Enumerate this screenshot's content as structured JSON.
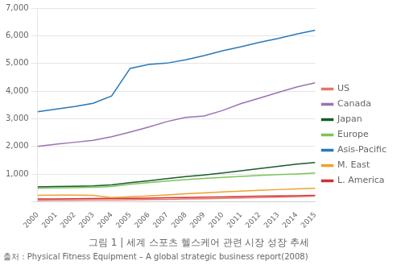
{
  "chart_data": {
    "type": "line",
    "title": "그림 1 | 세계 스포츠 헬스케어 관련 시장 성장 추세",
    "annotations": [
      "출처 : Physical Fitness Equipment – A global strategic business report(2008)"
    ],
    "x": [
      2000,
      2001,
      2002,
      2003,
      2004,
      2005,
      2006,
      2007,
      2008,
      2009,
      2010,
      2011,
      2012,
      2013,
      2014,
      2015
    ],
    "series": [
      {
        "name": "US",
        "color": "#e8756a",
        "values": [
          50,
          55,
          58,
          62,
          65,
          70,
          78,
          88,
          98,
          110,
          120,
          135,
          150,
          165,
          180,
          200
        ]
      },
      {
        "name": "Canada",
        "color": "#9b72b0",
        "values": [
          2000,
          2080,
          2150,
          2220,
          2350,
          2520,
          2700,
          2900,
          3050,
          3100,
          3300,
          3550,
          3750,
          3950,
          4150,
          4300
        ]
      },
      {
        "name": "Japan",
        "color": "#1a5c2a",
        "values": [
          540,
          550,
          560,
          575,
          610,
          690,
          760,
          840,
          910,
          970,
          1040,
          1120,
          1200,
          1280,
          1360,
          1420
        ]
      },
      {
        "name": "Europe",
        "color": "#7dc45a",
        "values": [
          490,
          500,
          510,
          525,
          555,
          630,
          690,
          750,
          800,
          845,
          880,
          915,
          950,
          980,
          1005,
          1040
        ]
      },
      {
        "name": "Asis-Pacific",
        "color": "#2878b8",
        "values": [
          3250,
          3350,
          3440,
          3560,
          3820,
          4820,
          4960,
          5010,
          5130,
          5280,
          5460,
          5600,
          5760,
          5900,
          6060,
          6200
        ]
      },
      {
        "name": "M. East",
        "color": "#f0a030",
        "values": [
          230,
          240,
          240,
          235,
          150,
          180,
          210,
          250,
          290,
          320,
          355,
          385,
          415,
          440,
          465,
          490
        ]
      },
      {
        "name": "L. America",
        "color": "#d03030",
        "values": [
          100,
          105,
          110,
          115,
          120,
          125,
          133,
          143,
          155,
          165,
          178,
          190,
          200,
          210,
          220,
          230
        ]
      }
    ],
    "xlim": [
      2000,
      2015
    ],
    "xticks": [
      2000,
      2001,
      2002,
      2003,
      2004,
      2005,
      2006,
      2007,
      2008,
      2009,
      2010,
      2011,
      2012,
      2013,
      2014,
      2015
    ],
    "ylim": [
      0,
      7000
    ],
    "yticks": [
      {
        "value": 0,
        "label": ""
      },
      {
        "value": 1000,
        "label": "1,000"
      },
      {
        "value": 2000,
        "label": "2,000"
      },
      {
        "value": 3000,
        "label": "3,000"
      },
      {
        "value": 4000,
        "label": "4,000"
      },
      {
        "value": 5000,
        "label": "5,000"
      },
      {
        "value": 6000,
        "label": "6,000"
      },
      {
        "value": 7000,
        "label": "7,000"
      }
    ],
    "grid": "y",
    "legend": "right"
  }
}
